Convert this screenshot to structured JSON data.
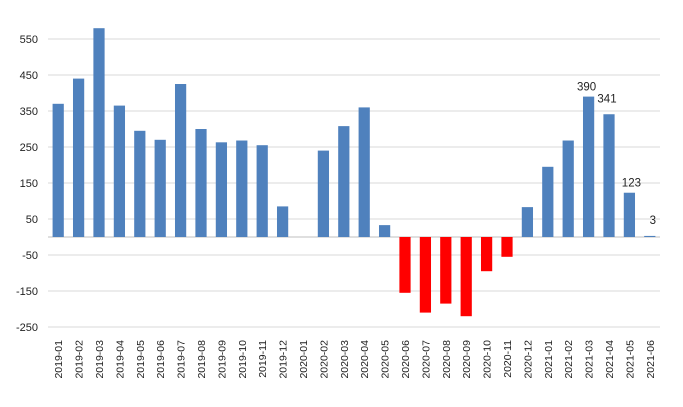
{
  "chart_data": {
    "type": "bar",
    "categories": [
      "2019-01",
      "2019-02",
      "2019-03",
      "2019-04",
      "2019-05",
      "2019-06",
      "2019-07",
      "2019-08",
      "2019-09",
      "2019-10",
      "2019-11",
      "2019-12",
      "2020-01",
      "2020-02",
      "2020-03",
      "2020-04",
      "2020-05",
      "2020-06",
      "2020-07",
      "2020-08",
      "2020-09",
      "2020-10",
      "2020-11",
      "2020-12",
      "2021-01",
      "2021-02",
      "2021-03",
      "2021-04",
      "2021-05",
      "2021-06"
    ],
    "values": [
      370,
      440,
      580,
      365,
      295,
      270,
      425,
      300,
      263,
      268,
      255,
      85,
      0,
      240,
      308,
      360,
      33,
      -155,
      -210,
      -185,
      -220,
      -95,
      -55,
      83,
      195,
      268,
      390,
      341,
      123,
      3
    ],
    "data_labels": {
      "26": "390",
      "27": "341",
      "28": "123",
      "29": "3"
    },
    "yticks": [
      550,
      450,
      350,
      250,
      150,
      50,
      -50,
      -150,
      -250
    ],
    "ylim": [
      -250,
      600
    ],
    "grid": true,
    "colors": {
      "positive": "#4F81BD",
      "negative": "#FF0000",
      "grid": "#D9D9D9"
    }
  }
}
